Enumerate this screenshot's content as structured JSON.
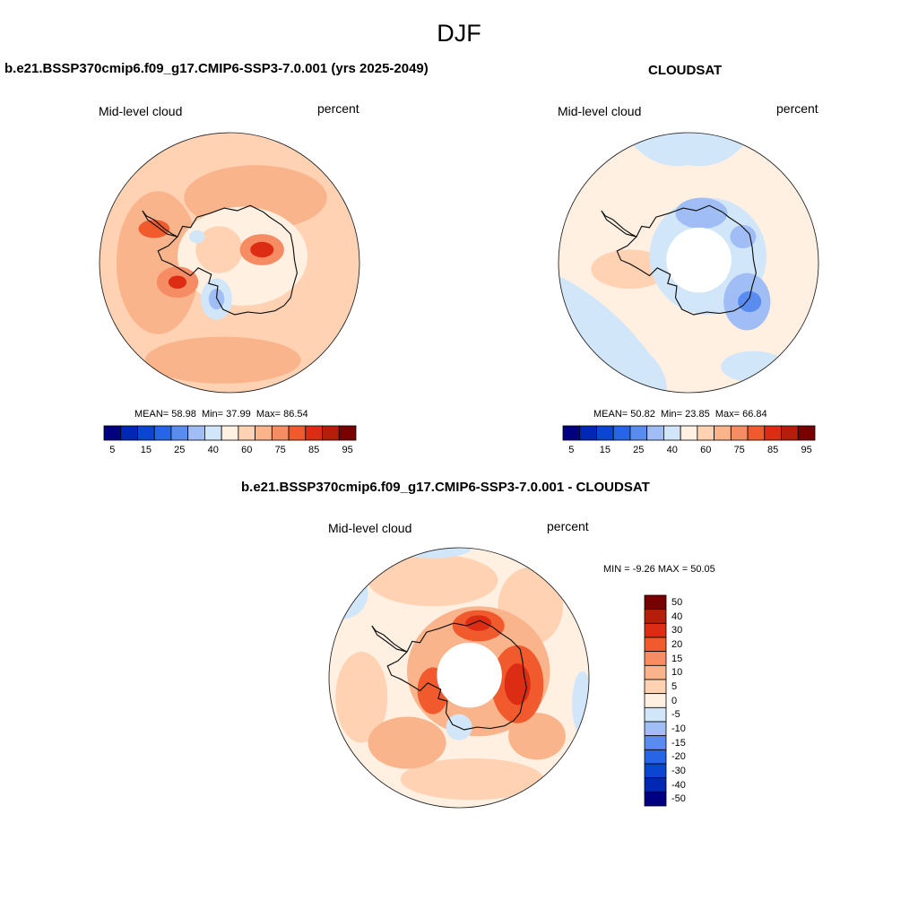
{
  "figure": {
    "title": "DJF"
  },
  "chart_data": [
    {
      "type": "heatmap",
      "projection": "south-polar-stereographic",
      "title": "b.e21.BSSP370cmip6.f09_g17.CMIP6-SSP3-7.0.001 (yrs 2025-2049)",
      "left_label": "Mid-level cloud",
      "right_label": "percent",
      "stats": {
        "mean_label": "MEAN=",
        "mean": "58.98",
        "min_label": "Min=",
        "min": "37.99",
        "max_label": "Max=",
        "max": "86.54"
      },
      "colorbar": {
        "orientation": "horizontal",
        "tick_labels": [
          "5",
          "15",
          "25",
          "40",
          "60",
          "75",
          "85",
          "95"
        ],
        "colors": [
          "#000080",
          "#0028b4",
          "#0a46d2",
          "#2864e6",
          "#5a8cf0",
          "#a0bef5",
          "#d2e6fa",
          "#fff0e1",
          "#ffd2b4",
          "#fab48c",
          "#f58c64",
          "#f05a2d",
          "#dc2d14",
          "#b41e0a",
          "#780000"
        ]
      },
      "features": [
        "antarctic-coastline"
      ]
    },
    {
      "type": "heatmap",
      "projection": "south-polar-stereographic",
      "title": "CLOUDSAT",
      "left_label": "Mid-level cloud",
      "right_label": "percent",
      "stats": {
        "mean_label": "MEAN=",
        "mean": "50.82",
        "min_label": "Min=",
        "min": "23.85",
        "max_label": "Max=",
        "max": "66.84"
      },
      "colorbar": {
        "orientation": "horizontal",
        "tick_labels": [
          "5",
          "15",
          "25",
          "40",
          "60",
          "75",
          "85",
          "95"
        ],
        "colors": [
          "#000080",
          "#0028b4",
          "#0a46d2",
          "#2864e6",
          "#5a8cf0",
          "#a0bef5",
          "#d2e6fa",
          "#fff0e1",
          "#ffd2b4",
          "#fab48c",
          "#f58c64",
          "#f05a2d",
          "#dc2d14",
          "#b41e0a",
          "#780000"
        ]
      },
      "features": [
        "antarctic-coastline",
        "missing-data-pole-hole"
      ]
    },
    {
      "type": "heatmap",
      "projection": "south-polar-stereographic",
      "title": "b.e21.BSSP370cmip6.f09_g17.CMIP6-SSP3-7.0.001 - CLOUDSAT",
      "left_label": "Mid-level cloud",
      "right_label": "percent",
      "stats": {
        "min_label": "MIN =",
        "min": "-9.26",
        "max_label": "MAX =",
        "max": "50.05"
      },
      "colorbar": {
        "orientation": "vertical",
        "tick_labels": [
          "50",
          "40",
          "30",
          "20",
          "15",
          "10",
          "5",
          "0",
          "-5",
          "-10",
          "-15",
          "-20",
          "-30",
          "-40",
          "-50"
        ],
        "colors": [
          "#780000",
          "#b41e0a",
          "#dc2d14",
          "#f05a2d",
          "#f58c64",
          "#fab48c",
          "#ffd2b4",
          "#fff0e1",
          "#d2e6fa",
          "#a0bef5",
          "#5a8cf0",
          "#2864e6",
          "#0a46d2",
          "#0028b4",
          "#000080"
        ]
      },
      "features": [
        "antarctic-coastline",
        "missing-data-pole-hole"
      ]
    }
  ]
}
